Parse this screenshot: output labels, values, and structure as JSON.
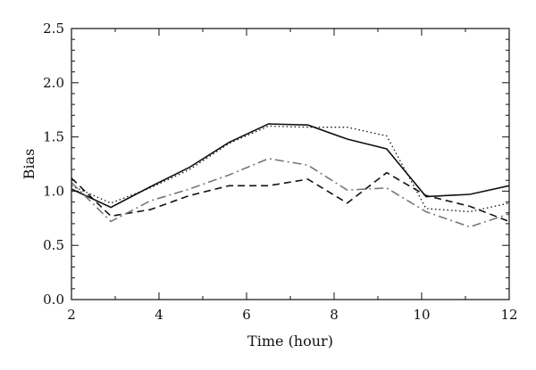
{
  "chart_data": {
    "type": "line",
    "title": "",
    "xlabel": "Time (hour)",
    "ylabel": "Bias",
    "xlim": [
      2,
      12
    ],
    "ylim": [
      0.0,
      2.5
    ],
    "x_ticks": [
      "2",
      "4",
      "6",
      "8",
      "10",
      "12"
    ],
    "y_ticks": [
      "0.0",
      "0.5",
      "1.0",
      "1.5",
      "2.0",
      "2.5"
    ],
    "grid": false,
    "legend": "none",
    "x": [
      2,
      2.9,
      3.8,
      4.7,
      5.6,
      6.5,
      7.4,
      8.3,
      9.2,
      10.1,
      11.1,
      12
    ],
    "series": [
      {
        "style": "solid",
        "color": "#111111",
        "values": [
          1.02,
          0.85,
          1.04,
          1.22,
          1.45,
          1.62,
          1.61,
          1.48,
          1.39,
          0.95,
          0.97,
          1.05
        ]
      },
      {
        "style": "dotted",
        "color": "#111111",
        "values": [
          1.05,
          0.89,
          1.03,
          1.2,
          1.44,
          1.6,
          1.59,
          1.59,
          1.51,
          0.84,
          0.81,
          0.89
        ]
      },
      {
        "style": "dashed",
        "color": "#111111",
        "values": [
          1.12,
          0.77,
          0.83,
          0.96,
          1.05,
          1.05,
          1.11,
          0.89,
          1.17,
          0.96,
          0.86,
          0.72
        ]
      },
      {
        "style": "dashdot",
        "color": "#777777",
        "values": [
          1.08,
          0.72,
          0.91,
          1.02,
          1.15,
          1.3,
          1.24,
          1.01,
          1.03,
          0.81,
          0.67,
          0.79
        ]
      }
    ]
  }
}
